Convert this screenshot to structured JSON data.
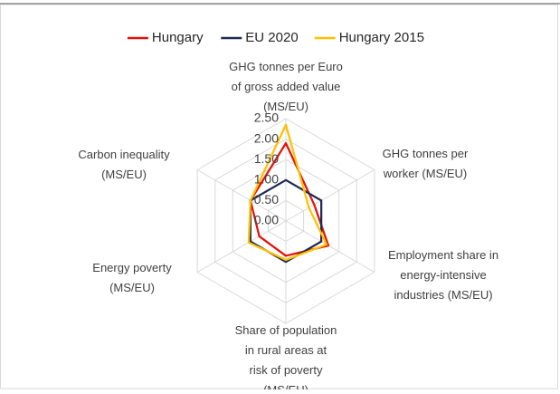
{
  "chart_data": {
    "type": "radar",
    "categories": [
      "GHG tonnes per Euro of gross added value (MS/EU)",
      "GHG tonnes per worker (MS/EU)",
      "Employment share in energy-intensive industries (MS/EU)",
      "Share of population in rural areas at risk of poverty (MS/EU)",
      "Energy poverty (MS/EU)",
      "Carbon inequality (MS/EU)"
    ],
    "series": [
      {
        "name": "Hungary",
        "color": "#e3120b",
        "values": [
          1.9,
          0.8,
          1.2,
          0.85,
          0.75,
          1.0
        ]
      },
      {
        "name": "EU 2020",
        "color": "#1f2a56",
        "values": [
          1,
          1,
          1,
          1,
          1,
          1
        ]
      },
      {
        "name": "Hungary 2015",
        "color": "#ffc000",
        "values": [
          2.35,
          0.65,
          1.15,
          0.95,
          1.05,
          1.0
        ]
      }
    ],
    "ylim": [
      0,
      2.5
    ],
    "yticks": [
      {
        "value": 0,
        "label": "0.00"
      },
      {
        "value": 0.5,
        "label": "0.50"
      },
      {
        "value": 1,
        "label": "1.00"
      },
      {
        "value": 1.5,
        "label": "1.50"
      },
      {
        "value": 2,
        "label": "2.00"
      },
      {
        "value": 2.5,
        "label": "2.50"
      }
    ],
    "grid": true,
    "legend": "top"
  }
}
